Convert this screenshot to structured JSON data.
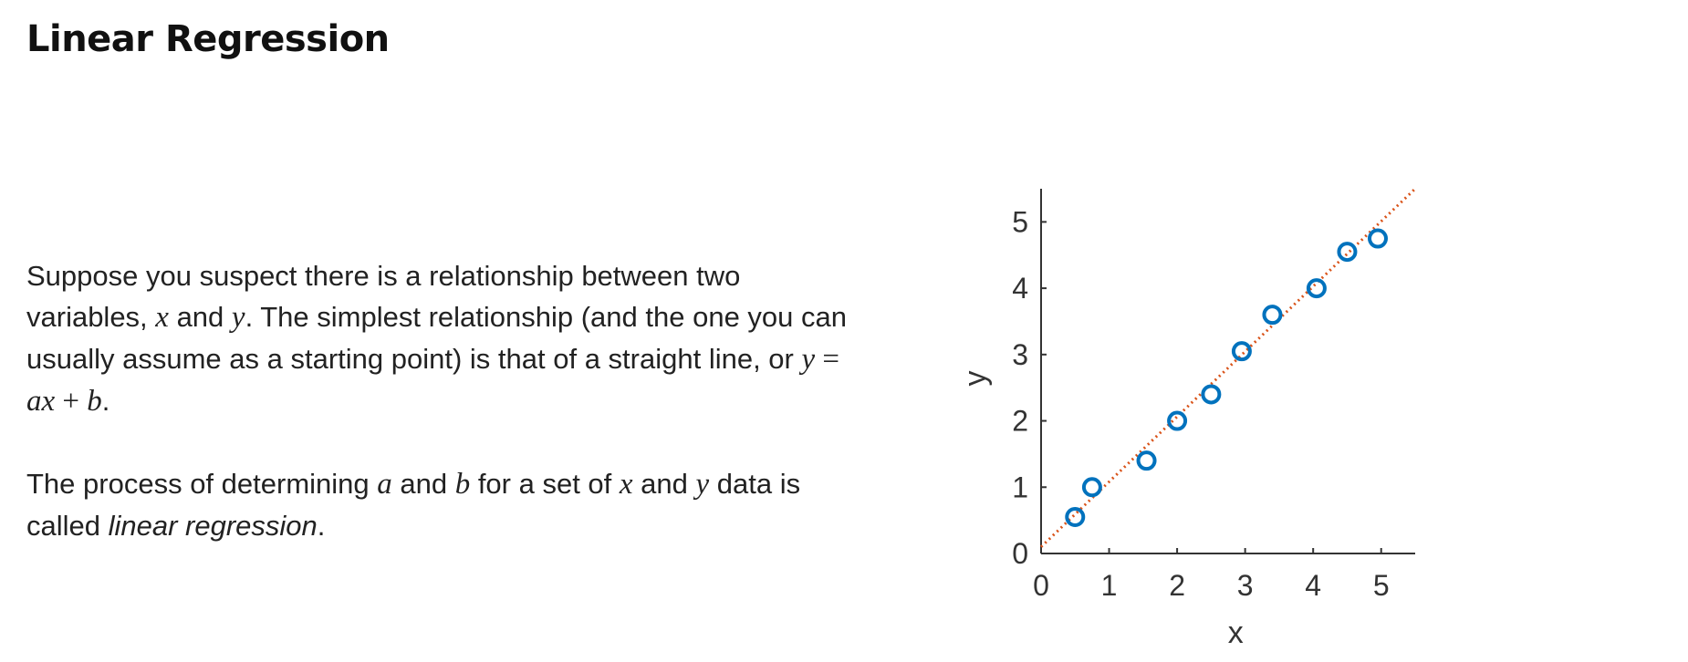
{
  "page": {
    "title": "Linear Regression",
    "paragraph1": {
      "t1": "Suppose you suspect there is a relationship between two variables, ",
      "var_x": "x",
      "t2": " and ",
      "var_y": "y",
      "t3": ". The simplest relationship (and the one you can usually assume as a starting point) is that of a straight line, or ",
      "eq_y": "y",
      "eq_eq": " = ",
      "eq_a": "a",
      "eq_x": "x",
      "eq_plus": " + ",
      "eq_b": "b",
      "t4": "."
    },
    "paragraph2": {
      "t1": "The process of determining ",
      "var_a": "a",
      "t2": " and ",
      "var_b": "b",
      "t3": " for a set of ",
      "var_x": "x",
      "t4": " and ",
      "var_y": "y",
      "t5": " data is called ",
      "emph": "linear regression",
      "t6": "."
    }
  },
  "chart_data": {
    "type": "scatter",
    "title": "",
    "xlabel": "x",
    "ylabel": "y",
    "xlim": [
      0,
      5.5
    ],
    "ylim": [
      0,
      5.5
    ],
    "xticks": [
      "0",
      "1",
      "2",
      "3",
      "4",
      "5"
    ],
    "yticks": [
      "0",
      "1",
      "2",
      "3",
      "4",
      "5"
    ],
    "grid": false,
    "marker_color": "#0072BD",
    "fit_line_color": "#D95319",
    "series": [
      {
        "x": [
          0.5,
          0.75,
          1.55,
          2.0,
          2.5,
          2.95,
          3.4,
          4.05,
          4.5,
          4.95
        ],
        "y": [
          0.55,
          1.0,
          1.4,
          2.0,
          2.4,
          3.05,
          3.6,
          4.0,
          4.55,
          4.75
        ]
      }
    ],
    "fit_line": {
      "x": [
        0,
        5.5
      ],
      "y": [
        0.1,
        5.5
      ]
    }
  }
}
